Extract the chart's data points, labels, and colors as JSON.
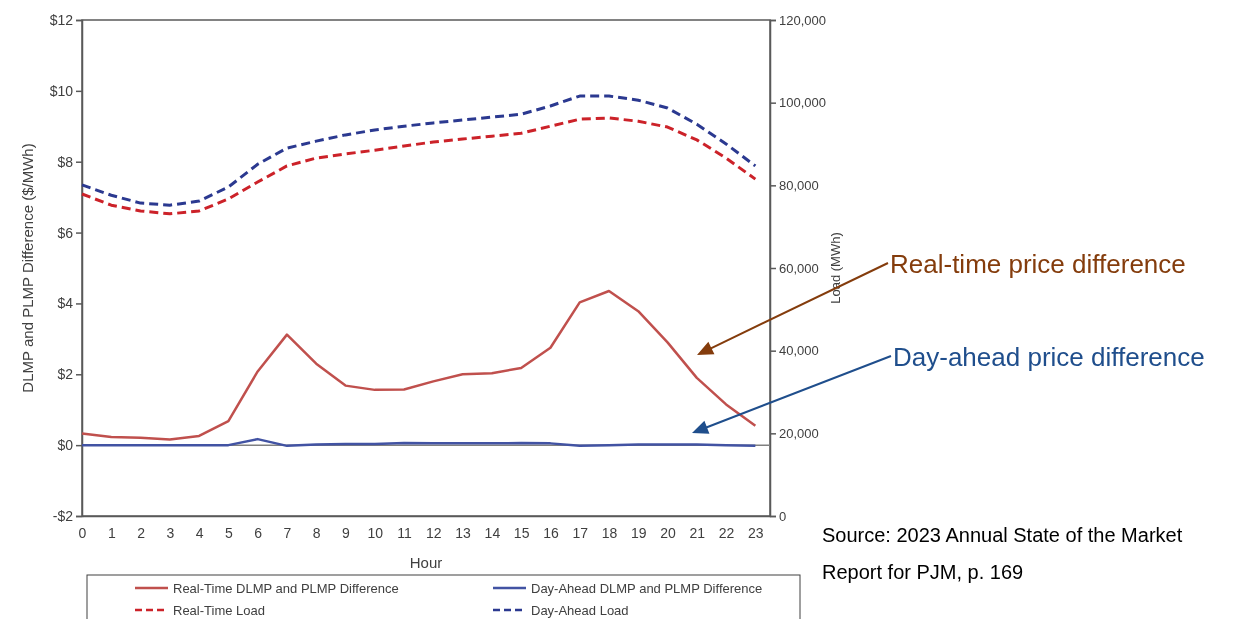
{
  "chart_data": {
    "type": "line",
    "xlabel": "Hour",
    "ylabel": "DLMP and PLMP Difference ($/MWh)",
    "y2label": "Load (MWh)",
    "x": [
      0,
      1,
      2,
      3,
      4,
      5,
      6,
      7,
      8,
      9,
      10,
      11,
      12,
      13,
      14,
      15,
      16,
      17,
      18,
      19,
      20,
      21,
      22,
      23
    ],
    "xlim": [
      0,
      23.5
    ],
    "xticks": [
      0,
      1,
      2,
      3,
      4,
      5,
      6,
      7,
      8,
      9,
      10,
      11,
      12,
      13,
      14,
      15,
      16,
      17,
      18,
      19,
      20,
      21,
      22,
      23
    ],
    "ylim": [
      -2,
      12
    ],
    "yticks": [
      {
        "value": -2,
        "label": "-$2"
      },
      {
        "value": 0,
        "label": "$0"
      },
      {
        "value": 2,
        "label": "$2"
      },
      {
        "value": 4,
        "label": "$4"
      },
      {
        "value": 6,
        "label": "$6"
      },
      {
        "value": 8,
        "label": "$8"
      },
      {
        "value": 10,
        "label": "$10"
      },
      {
        "value": 12,
        "label": "$12"
      }
    ],
    "y2lim": [
      0,
      120000
    ],
    "y2ticks": [
      0,
      {
        "value": 20000,
        "label": "20,000"
      },
      {
        "value": 40000,
        "label": "40,000"
      },
      {
        "value": 60000,
        "label": "60,000"
      },
      {
        "value": 80000,
        "label": "80,000"
      },
      {
        "value": 100000,
        "label": "100,000"
      },
      {
        "value": 120000,
        "label": "120,000"
      }
    ],
    "series": [
      {
        "name": "Real-Time DLMP and PLMP Difference",
        "color": "#c0504d",
        "line_style": "solid",
        "values": [
          0.33,
          0.23,
          0.21,
          0.16,
          0.26,
          0.68,
          2.08,
          3.12,
          2.3,
          1.68,
          1.56,
          1.57,
          1.8,
          2.0,
          2.03,
          2.18,
          2.75,
          4.03,
          4.35,
          3.78,
          2.9,
          1.9,
          1.15,
          0.55
        ]
      },
      {
        "name": "Day-Ahead DLMP and PLMP Difference",
        "color": "#4253a3",
        "line_style": "solid",
        "values": [
          0,
          0,
          0,
          0,
          0,
          0,
          0.17,
          -0.02,
          0.02,
          0.03,
          0.03,
          0.06,
          0.05,
          0.05,
          0.05,
          0.06,
          0.05,
          -0.02,
          0,
          0.02,
          0.02,
          0.02,
          0,
          -0.02
        ]
      },
      {
        "name": "Real-Time Load",
        "color": "#cc2229",
        "line_style": "dashed",
        "axis": "y2",
        "values": [
          77900,
          75200,
          73800,
          73100,
          73800,
          76700,
          80800,
          84700,
          86600,
          87600,
          88500,
          89500,
          90500,
          91200,
          91900,
          92600,
          94300,
          96000,
          96300,
          95500,
          94100,
          91000,
          86600,
          81500
        ]
      },
      {
        "name": "Day-Ahead Load",
        "color": "#2b3990",
        "line_style": "dashed",
        "axis": "y2",
        "values": [
          80100,
          77600,
          75700,
          75200,
          76200,
          79600,
          85100,
          89000,
          90700,
          92200,
          93400,
          94300,
          95100,
          95800,
          96500,
          97200,
          99200,
          101600,
          101600,
          100600,
          98700,
          94800,
          90000,
          84700
        ]
      }
    ],
    "ref_lines": [
      {
        "axis": "y",
        "value": 0,
        "color": "#808080"
      }
    ],
    "grid": false,
    "legend": "bottom",
    "annotations": [
      "Real-time price difference",
      "Day-ahead price difference",
      "Source: 2023 Annual State of the Market Report for PJM, p. 169"
    ]
  }
}
